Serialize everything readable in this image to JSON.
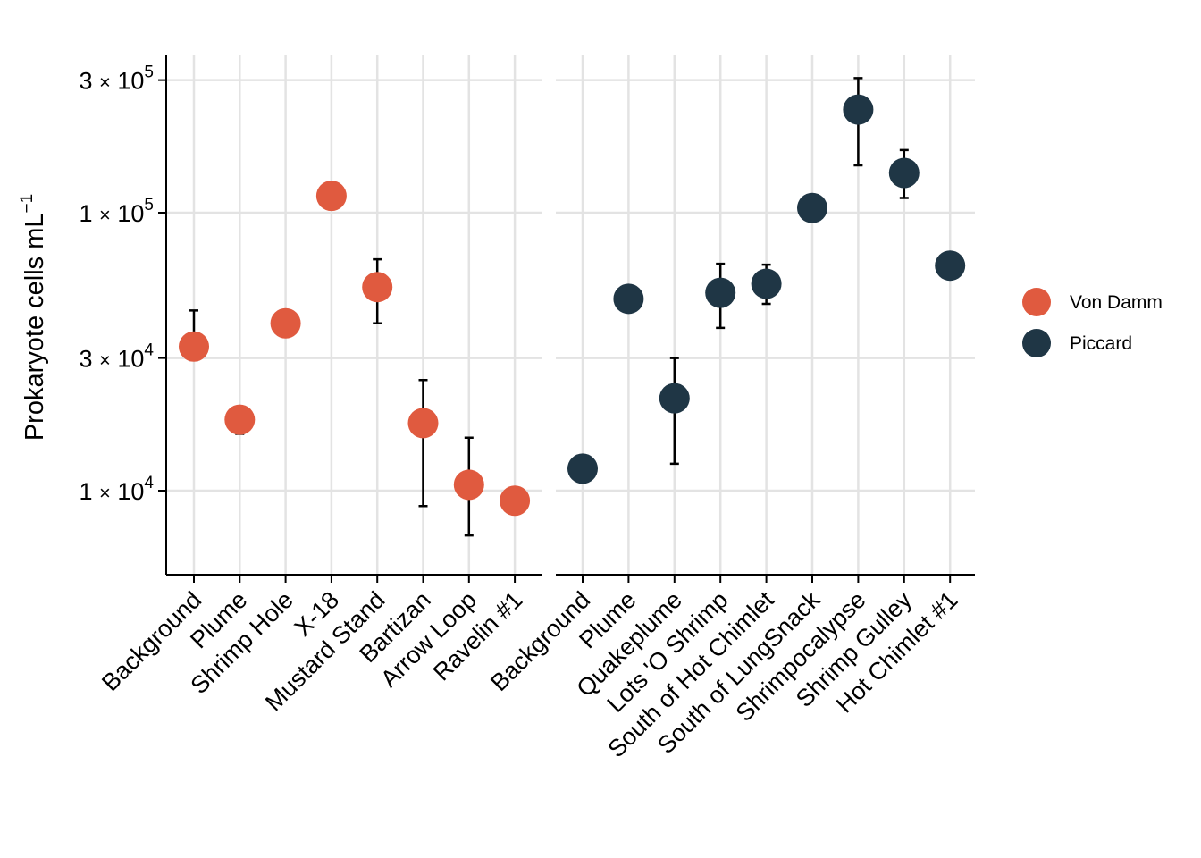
{
  "chart_data": {
    "type": "scatter",
    "ylabel": "Prokaryote cells  mL",
    "ylabel_superscript": "−1",
    "y_scale": "log",
    "ylim": [
      5000,
      400000
    ],
    "y_ticks": [
      {
        "value": 10000,
        "mantissa": "1",
        "times": "×",
        "base": "10",
        "exp": "4"
      },
      {
        "value": 30000,
        "mantissa": "3",
        "times": "×",
        "base": "10",
        "exp": "4"
      },
      {
        "value": 100000,
        "mantissa": "1",
        "times": "×",
        "base": "10",
        "exp": "5"
      },
      {
        "value": 300000,
        "mantissa": "3",
        "times": "×",
        "base": "10",
        "exp": "5"
      }
    ],
    "grid": true,
    "legend_placement": "right",
    "legend": [
      {
        "name": "Von Damm",
        "color": "#e05a3f"
      },
      {
        "name": "Piccard",
        "color": "#1f3645"
      }
    ],
    "panels": [
      {
        "series": "Von Damm",
        "color": "#e05a3f",
        "points": [
          {
            "label": "Background",
            "y": 33000,
            "ymin": 29500,
            "ymax": 44500
          },
          {
            "label": "Plume",
            "y": 18000,
            "ymin": 16000,
            "ymax": 20000
          },
          {
            "label": "Shrimp Hole",
            "y": 40000,
            "ymin": null,
            "ymax": null
          },
          {
            "label": "X-18",
            "y": 115000,
            "ymin": null,
            "ymax": null
          },
          {
            "label": "Mustard Stand",
            "y": 54000,
            "ymin": 40000,
            "ymax": 68000
          },
          {
            "label": "Bartizan",
            "y": 17500,
            "ymin": 8800,
            "ymax": 25000
          },
          {
            "label": "Arrow Loop",
            "y": 10500,
            "ymin": 6900,
            "ymax": 15500
          },
          {
            "label": "Ravelin #1",
            "y": 9200,
            "ymin": null,
            "ymax": null
          }
        ]
      },
      {
        "series": "Piccard",
        "color": "#1f3645",
        "points": [
          {
            "label": "Background",
            "y": 12000,
            "ymin": null,
            "ymax": null
          },
          {
            "label": "Plume",
            "y": 49000,
            "ymin": null,
            "ymax": null
          },
          {
            "label": "Quakeplume",
            "y": 21500,
            "ymin": 12500,
            "ymax": 30000
          },
          {
            "label": "Lots 'O Shrimp",
            "y": 51500,
            "ymin": 38500,
            "ymax": 65500
          },
          {
            "label": "South of Hot Chimlet",
            "y": 55500,
            "ymin": 47000,
            "ymax": 65000
          },
          {
            "label": "South of LungSnack",
            "y": 104000,
            "ymin": null,
            "ymax": null
          },
          {
            "label": "Shrimpocalypse",
            "y": 235000,
            "ymin": 148000,
            "ymax": 305000
          },
          {
            "label": "Shrimp Gulley",
            "y": 139000,
            "ymin": 113000,
            "ymax": 168000
          },
          {
            "label": "Hot Chimlet #1",
            "y": 64500,
            "ymin": null,
            "ymax": null
          }
        ]
      }
    ]
  }
}
